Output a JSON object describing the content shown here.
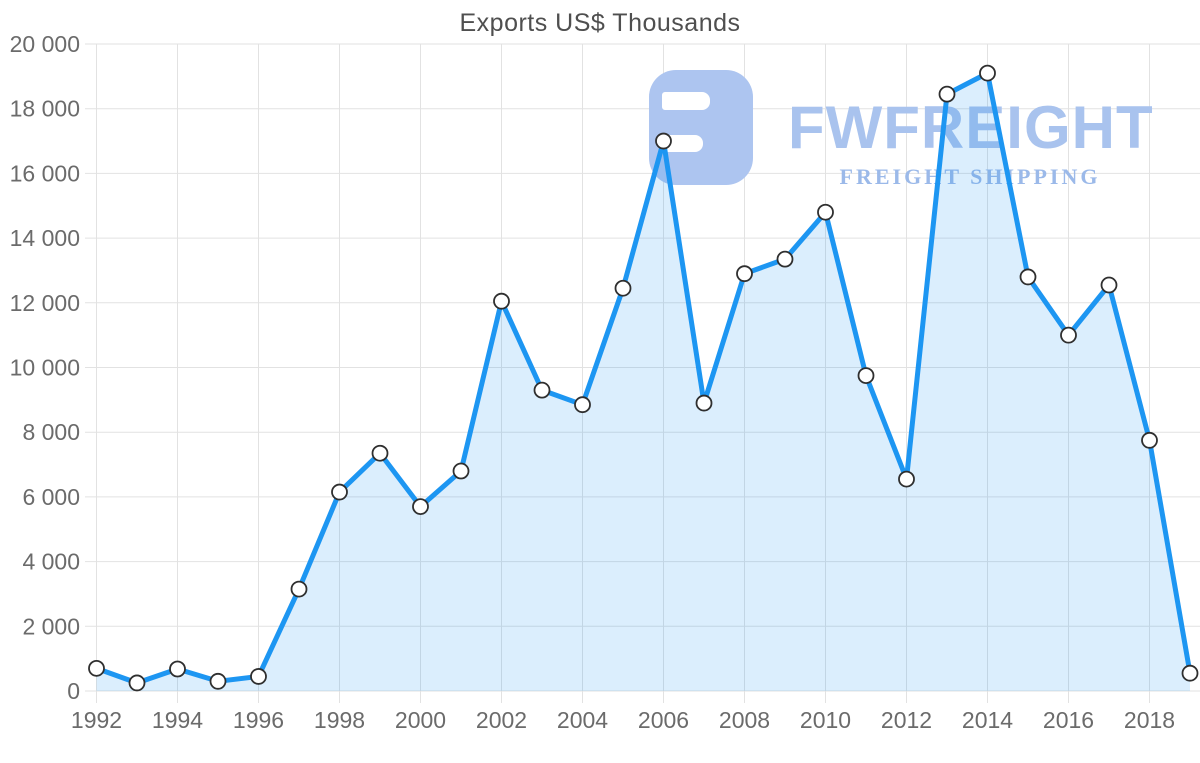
{
  "page": {
    "background": "#ffffff"
  },
  "watermark": {
    "brand": "FWFREIGHT",
    "tagline": "FREIGHT SHIPPING",
    "logo_color": "#adc5f0",
    "text_color": "#a9c3ee"
  },
  "chart_data": {
    "type": "area",
    "title": "Exports US$ Thousands",
    "xlabel": "",
    "ylabel": "",
    "x": [
      1992,
      1993,
      1994,
      1995,
      1996,
      1997,
      1998,
      1999,
      2000,
      2001,
      2002,
      2003,
      2004,
      2005,
      2006,
      2007,
      2008,
      2009,
      2010,
      2011,
      2012,
      2013,
      2014,
      2015,
      2016,
      2017,
      2018,
      2019
    ],
    "values": [
      700,
      250,
      680,
      300,
      450,
      3150,
      6150,
      7350,
      5700,
      6800,
      12050,
      9300,
      8850,
      12450,
      17000,
      8900,
      12900,
      13350,
      14800,
      9750,
      6550,
      18450,
      19100,
      12800,
      11000,
      12550,
      7750,
      550
    ],
    "ylim": [
      0,
      20000
    ],
    "ytick_step": 2000,
    "xtick_step": 2,
    "x_tick_labels": [
      "1992",
      "1994",
      "1996",
      "1998",
      "2000",
      "2002",
      "2004",
      "2006",
      "2008",
      "2010",
      "2012",
      "2014",
      "2016",
      "2018"
    ],
    "y_tick_labels": [
      "0",
      "2 000",
      "4 000",
      "6 000",
      "8 000",
      "10 000",
      "12 000",
      "14 000",
      "16 000",
      "18 000",
      "20 000"
    ],
    "grid": true,
    "legend": "none",
    "marker": "circle",
    "colors": {
      "line": "#1d96f2",
      "fill": "rgba(30,150,243,0.16)",
      "marker_fill": "#ffffff",
      "marker_stroke": "#2f2f2f",
      "grid": "#e2e2e2",
      "axis_text": "#6b6b6b",
      "title_text": "#4f4f4f"
    }
  }
}
